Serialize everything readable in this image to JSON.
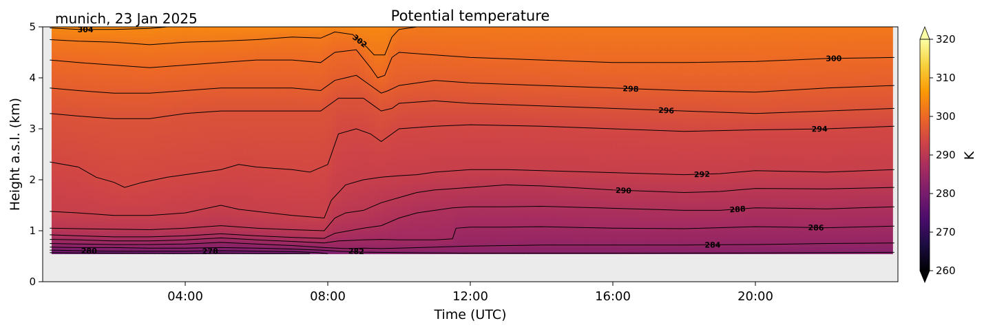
{
  "chart_data": {
    "type": "heatmap",
    "title": "Potential temperature",
    "subtitle": "munich, 23 Jan 2025",
    "xlabel": "Time (UTC)",
    "ylabel": "Height a.s.l. (km)",
    "x_unit": "hours UTC",
    "xlim": [
      0,
      24
    ],
    "ylim": [
      0,
      5
    ],
    "x_ticks": [
      4,
      8,
      12,
      16,
      20
    ],
    "x_tick_labels": [
      "04:00",
      "08:00",
      "12:00",
      "16:00",
      "20:00"
    ],
    "y_ticks": [
      0,
      1,
      2,
      3,
      4,
      5
    ],
    "y_tick_labels": [
      "0",
      "1",
      "2",
      "3",
      "4",
      "5"
    ],
    "data_floor_km": 0.55,
    "colorbar": {
      "label": "K",
      "vmin": 260,
      "vmax": 320,
      "ticks": [
        260,
        270,
        280,
        290,
        300,
        310,
        320
      ],
      "tick_labels": [
        "260",
        "270",
        "280",
        "290",
        "300",
        "310",
        "320"
      ],
      "colormap": "inferno",
      "extend": "both"
    },
    "colormap_stops": [
      "#000004",
      "#1b0c41",
      "#4a0c6b",
      "#781c6d",
      "#a52c60",
      "#cf4446",
      "#ed6925",
      "#fb9b06",
      "#f7d13d",
      "#fcffa4"
    ],
    "background_color": "#ebebeb",
    "contour_interval": 2,
    "contours": [
      {
        "theta": 278,
        "label": "278",
        "label_time": 4.7,
        "points": [
          [
            0.2,
            0.57
          ],
          [
            1,
            0.565
          ],
          [
            2,
            0.56
          ],
          [
            3,
            0.555
          ],
          [
            4,
            0.55
          ],
          [
            5,
            0.56
          ],
          [
            6,
            0.55
          ],
          [
            7,
            0.55
          ],
          [
            7.5,
            0.55
          ]
        ]
      },
      {
        "theta": 280,
        "label": "280",
        "label_time": 1.3,
        "points": [
          [
            0.2,
            0.62
          ],
          [
            1,
            0.61
          ],
          [
            2,
            0.6
          ],
          [
            3,
            0.6
          ],
          [
            4,
            0.6
          ],
          [
            5,
            0.61
          ],
          [
            6,
            0.6
          ],
          [
            7,
            0.59
          ],
          [
            7.7,
            0.57
          ],
          [
            8,
            0.55
          ]
        ]
      },
      {
        "theta": 282,
        "label": "282",
        "label_time": 8.8,
        "points": [
          [
            0.2,
            0.68
          ],
          [
            1,
            0.67
          ],
          [
            2,
            0.67
          ],
          [
            3,
            0.66
          ],
          [
            4,
            0.66
          ],
          [
            5,
            0.67
          ],
          [
            6,
            0.66
          ],
          [
            7,
            0.64
          ],
          [
            7.8,
            0.62
          ],
          [
            8.3,
            0.6
          ],
          [
            9,
            0.58
          ],
          [
            10,
            0.57
          ],
          [
            11,
            0.565
          ],
          [
            12,
            0.56
          ],
          [
            16,
            0.56
          ],
          [
            20,
            0.565
          ],
          [
            23.9,
            0.575
          ]
        ]
      },
      {
        "theta": 284,
        "label": "284",
        "label_time": 18.8,
        "points": [
          [
            0.2,
            0.75
          ],
          [
            1,
            0.74
          ],
          [
            2,
            0.73
          ],
          [
            3,
            0.73
          ],
          [
            4,
            0.74
          ],
          [
            5,
            0.77
          ],
          [
            6,
            0.74
          ],
          [
            7,
            0.71
          ],
          [
            7.9,
            0.67
          ],
          [
            8.5,
            0.65
          ],
          [
            9,
            0.66
          ],
          [
            9.5,
            0.65
          ],
          [
            10,
            0.66
          ],
          [
            11,
            0.68
          ],
          [
            12,
            0.7
          ],
          [
            13,
            0.71
          ],
          [
            14,
            0.72
          ],
          [
            16,
            0.72
          ],
          [
            18,
            0.72
          ],
          [
            20,
            0.73
          ],
          [
            22,
            0.75
          ],
          [
            23.9,
            0.76
          ]
        ]
      },
      {
        "theta": 286,
        "label": "286",
        "label_time": 21.7,
        "points": [
          [
            0.2,
            0.83
          ],
          [
            1,
            0.82
          ],
          [
            2,
            0.8
          ],
          [
            3,
            0.8
          ],
          [
            4,
            0.82
          ],
          [
            5,
            0.86
          ],
          [
            6,
            0.82
          ],
          [
            7,
            0.79
          ],
          [
            7.9,
            0.76
          ],
          [
            8.3,
            0.8
          ],
          [
            9,
            0.82
          ],
          [
            9.5,
            0.83
          ],
          [
            10,
            0.82
          ],
          [
            11,
            0.82
          ],
          [
            11.5,
            0.84
          ],
          [
            11.6,
            1.05
          ],
          [
            12,
            1.07
          ],
          [
            13,
            1.07
          ],
          [
            14,
            1.08
          ],
          [
            16,
            1.05
          ],
          [
            18,
            1.04
          ],
          [
            20,
            1.08
          ],
          [
            22,
            1.06
          ],
          [
            23.9,
            1.09
          ]
        ]
      },
      {
        "theta": 288,
        "label": "288",
        "label_time": 19.5,
        "points": [
          [
            0.2,
            0.92
          ],
          [
            1,
            0.9
          ],
          [
            2,
            0.88
          ],
          [
            3,
            0.88
          ],
          [
            4,
            0.9
          ],
          [
            5,
            0.94
          ],
          [
            6,
            0.9
          ],
          [
            7,
            0.87
          ],
          [
            7.9,
            0.85
          ],
          [
            8.2,
            0.95
          ],
          [
            8.6,
            1.0
          ],
          [
            9,
            1.05
          ],
          [
            9.5,
            1.1
          ],
          [
            10,
            1.25
          ],
          [
            10.5,
            1.35
          ],
          [
            11,
            1.4
          ],
          [
            11.5,
            1.45
          ],
          [
            12,
            1.47
          ],
          [
            13,
            1.47
          ],
          [
            14,
            1.48
          ],
          [
            16,
            1.44
          ],
          [
            18,
            1.4
          ],
          [
            19,
            1.4
          ],
          [
            20,
            1.45
          ],
          [
            22,
            1.43
          ],
          [
            23.9,
            1.47
          ]
        ]
      },
      {
        "theta": 290,
        "label": "290",
        "label_time": 16.3,
        "points": [
          [
            0.2,
            1.05
          ],
          [
            1,
            1.04
          ],
          [
            2,
            1.03
          ],
          [
            3,
            1.02
          ],
          [
            4,
            1.05
          ],
          [
            5,
            1.1
          ],
          [
            6,
            1.05
          ],
          [
            7,
            1.02
          ],
          [
            7.9,
            1.0
          ],
          [
            8.2,
            1.25
          ],
          [
            8.5,
            1.35
          ],
          [
            9,
            1.4
          ],
          [
            9.5,
            1.55
          ],
          [
            10,
            1.65
          ],
          [
            10.5,
            1.75
          ],
          [
            11,
            1.8
          ],
          [
            12,
            1.85
          ],
          [
            13,
            1.9
          ],
          [
            14,
            1.88
          ],
          [
            15,
            1.84
          ],
          [
            16,
            1.8
          ],
          [
            18,
            1.75
          ],
          [
            19,
            1.77
          ],
          [
            20,
            1.83
          ],
          [
            22,
            1.82
          ],
          [
            23.9,
            1.85
          ]
        ]
      },
      {
        "theta": 292,
        "label": "292",
        "label_time": 18.5,
        "points": [
          [
            0.2,
            1.38
          ],
          [
            1,
            1.35
          ],
          [
            2,
            1.3
          ],
          [
            3,
            1.3
          ],
          [
            4,
            1.35
          ],
          [
            5,
            1.5
          ],
          [
            5.5,
            1.42
          ],
          [
            6,
            1.38
          ],
          [
            7,
            1.3
          ],
          [
            7.9,
            1.25
          ],
          [
            8.1,
            1.6
          ],
          [
            8.5,
            1.9
          ],
          [
            9,
            2.0
          ],
          [
            9.5,
            2.05
          ],
          [
            10,
            2.08
          ],
          [
            10.5,
            2.1
          ],
          [
            11,
            2.15
          ],
          [
            12,
            2.2
          ],
          [
            13,
            2.2
          ],
          [
            14,
            2.18
          ],
          [
            16,
            2.14
          ],
          [
            18,
            2.1
          ],
          [
            19,
            2.12
          ],
          [
            20,
            2.18
          ],
          [
            22,
            2.15
          ],
          [
            23.9,
            2.2
          ]
        ]
      },
      {
        "theta": 294,
        "label": "294",
        "label_time": 21.8,
        "points": [
          [
            0.2,
            2.35
          ],
          [
            1,
            2.25
          ],
          [
            1.5,
            2.05
          ],
          [
            2,
            1.95
          ],
          [
            2.3,
            1.85
          ],
          [
            2.8,
            1.95
          ],
          [
            3.5,
            2.05
          ],
          [
            4,
            2.1
          ],
          [
            5,
            2.2
          ],
          [
            5.5,
            2.3
          ],
          [
            6,
            2.25
          ],
          [
            7,
            2.2
          ],
          [
            7.5,
            2.15
          ],
          [
            8,
            2.3
          ],
          [
            8.3,
            2.9
          ],
          [
            8.8,
            3.0
          ],
          [
            9.2,
            2.9
          ],
          [
            9.5,
            2.75
          ],
          [
            9.8,
            2.9
          ],
          [
            10,
            3.0
          ],
          [
            11,
            3.05
          ],
          [
            12,
            3.08
          ],
          [
            14,
            3.05
          ],
          [
            16,
            3.0
          ],
          [
            18,
            2.95
          ],
          [
            20,
            2.98
          ],
          [
            22,
            3.0
          ],
          [
            23.9,
            3.05
          ]
        ]
      },
      {
        "theta": 296,
        "label": "296",
        "label_time": 17.5,
        "points": [
          [
            0.2,
            3.3
          ],
          [
            1,
            3.25
          ],
          [
            2,
            3.2
          ],
          [
            3,
            3.2
          ],
          [
            4,
            3.3
          ],
          [
            5,
            3.35
          ],
          [
            6,
            3.35
          ],
          [
            7,
            3.35
          ],
          [
            7.8,
            3.35
          ],
          [
            8.3,
            3.6
          ],
          [
            9,
            3.6
          ],
          [
            9.3,
            3.45
          ],
          [
            9.5,
            3.35
          ],
          [
            9.8,
            3.4
          ],
          [
            10,
            3.5
          ],
          [
            11,
            3.55
          ],
          [
            12,
            3.5
          ],
          [
            14,
            3.45
          ],
          [
            16,
            3.4
          ],
          [
            18,
            3.35
          ],
          [
            20,
            3.3
          ],
          [
            22,
            3.35
          ],
          [
            23.9,
            3.4
          ]
        ]
      },
      {
        "theta": 298,
        "label": "298",
        "label_time": 16.5,
        "points": [
          [
            0.2,
            3.8
          ],
          [
            1,
            3.75
          ],
          [
            2,
            3.7
          ],
          [
            3,
            3.7
          ],
          [
            4,
            3.75
          ],
          [
            5,
            3.8
          ],
          [
            6,
            3.8
          ],
          [
            7,
            3.8
          ],
          [
            7.8,
            3.75
          ],
          [
            8.2,
            3.95
          ],
          [
            8.8,
            4.05
          ],
          [
            9.2,
            3.85
          ],
          [
            9.5,
            3.7
          ],
          [
            9.7,
            3.75
          ],
          [
            10,
            3.85
          ],
          [
            11,
            3.95
          ],
          [
            12,
            3.9
          ],
          [
            14,
            3.85
          ],
          [
            16,
            3.8
          ],
          [
            18,
            3.75
          ],
          [
            20,
            3.72
          ],
          [
            22,
            3.8
          ],
          [
            23.9,
            3.85
          ]
        ]
      },
      {
        "theta": 300,
        "label": "300",
        "label_time": 22.2,
        "points": [
          [
            0.2,
            4.35
          ],
          [
            1,
            4.3
          ],
          [
            2,
            4.25
          ],
          [
            3,
            4.2
          ],
          [
            4,
            4.25
          ],
          [
            5,
            4.3
          ],
          [
            6,
            4.35
          ],
          [
            7,
            4.35
          ],
          [
            7.8,
            4.3
          ],
          [
            8.2,
            4.5
          ],
          [
            8.8,
            4.55
          ],
          [
            9.2,
            4.2
          ],
          [
            9.4,
            4.0
          ],
          [
            9.6,
            4.05
          ],
          [
            9.8,
            4.4
          ],
          [
            10,
            4.5
          ],
          [
            11,
            4.45
          ],
          [
            12,
            4.4
          ],
          [
            14,
            4.35
          ],
          [
            16,
            4.3
          ],
          [
            18,
            4.3
          ],
          [
            20,
            4.32
          ],
          [
            22,
            4.38
          ],
          [
            23.9,
            4.4
          ]
        ]
      },
      {
        "theta": 302,
        "label": "302",
        "label_time": 8.9,
        "points": [
          [
            0.2,
            4.75
          ],
          [
            1,
            4.72
          ],
          [
            2,
            4.7
          ],
          [
            3,
            4.65
          ],
          [
            4,
            4.7
          ],
          [
            5,
            4.72
          ],
          [
            6,
            4.75
          ],
          [
            7,
            4.8
          ],
          [
            7.8,
            4.78
          ],
          [
            8.2,
            4.9
          ],
          [
            8.7,
            4.85
          ],
          [
            9.1,
            4.6
          ],
          [
            9.3,
            4.45
          ],
          [
            9.6,
            4.45
          ],
          [
            9.8,
            4.8
          ],
          [
            10,
            4.95
          ],
          [
            10.5,
            5.0
          ]
        ]
      },
      {
        "theta": 304,
        "label": "304",
        "label_time": 1.2,
        "points": [
          [
            0.2,
            4.98
          ],
          [
            1,
            4.95
          ],
          [
            2,
            4.95
          ],
          [
            3,
            4.97
          ],
          [
            3.5,
            5.0
          ]
        ]
      }
    ]
  }
}
